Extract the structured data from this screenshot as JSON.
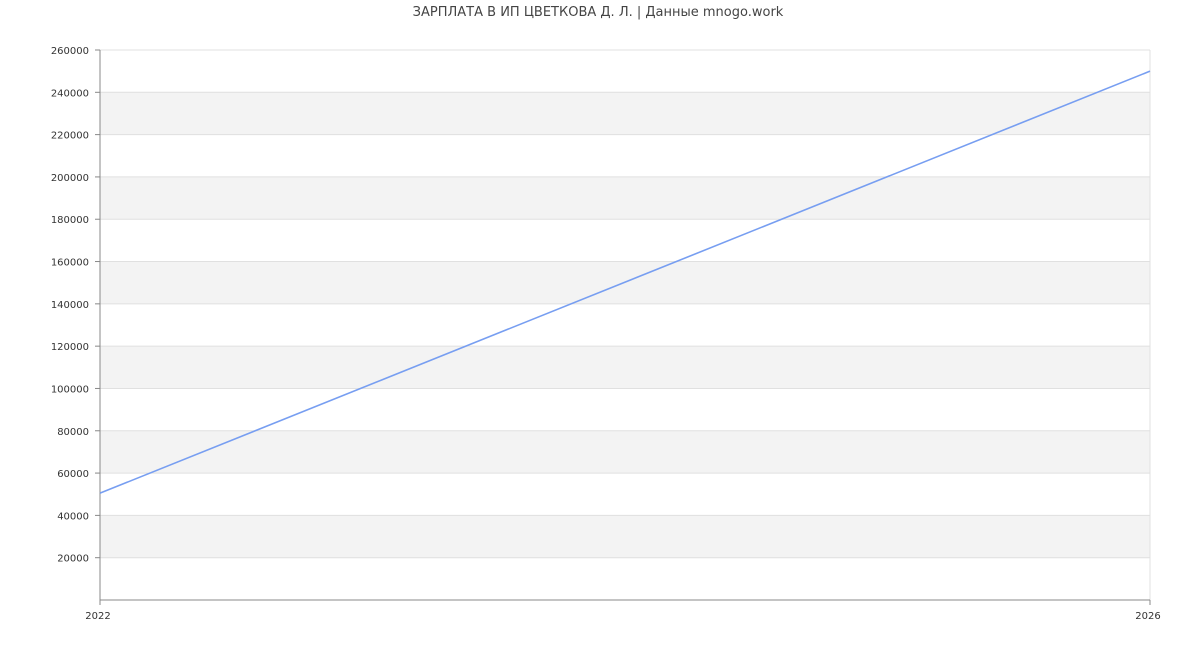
{
  "chart_data": {
    "type": "line",
    "title": "ЗАРПЛАТА В ИП ЦВЕТКОВА Д. Л. | Данные mnogo.work",
    "x": [
      2022,
      2026
    ],
    "series": [
      {
        "values": [
          50500,
          250000
        ],
        "color": "#779ef1"
      }
    ],
    "xticks": [
      "2022",
      "2026"
    ],
    "yticks": [
      "20000",
      "40000",
      "60000",
      "80000",
      "100000",
      "120000",
      "140000",
      "160000",
      "180000",
      "200000",
      "220000",
      "240000",
      "260000"
    ],
    "xlim": [
      2022,
      2026
    ],
    "ylim": [
      0,
      260000
    ],
    "grid": true,
    "band_color": "#f3f3f3",
    "grid_color": "#e0e0e0",
    "axis_color": "#888888"
  }
}
